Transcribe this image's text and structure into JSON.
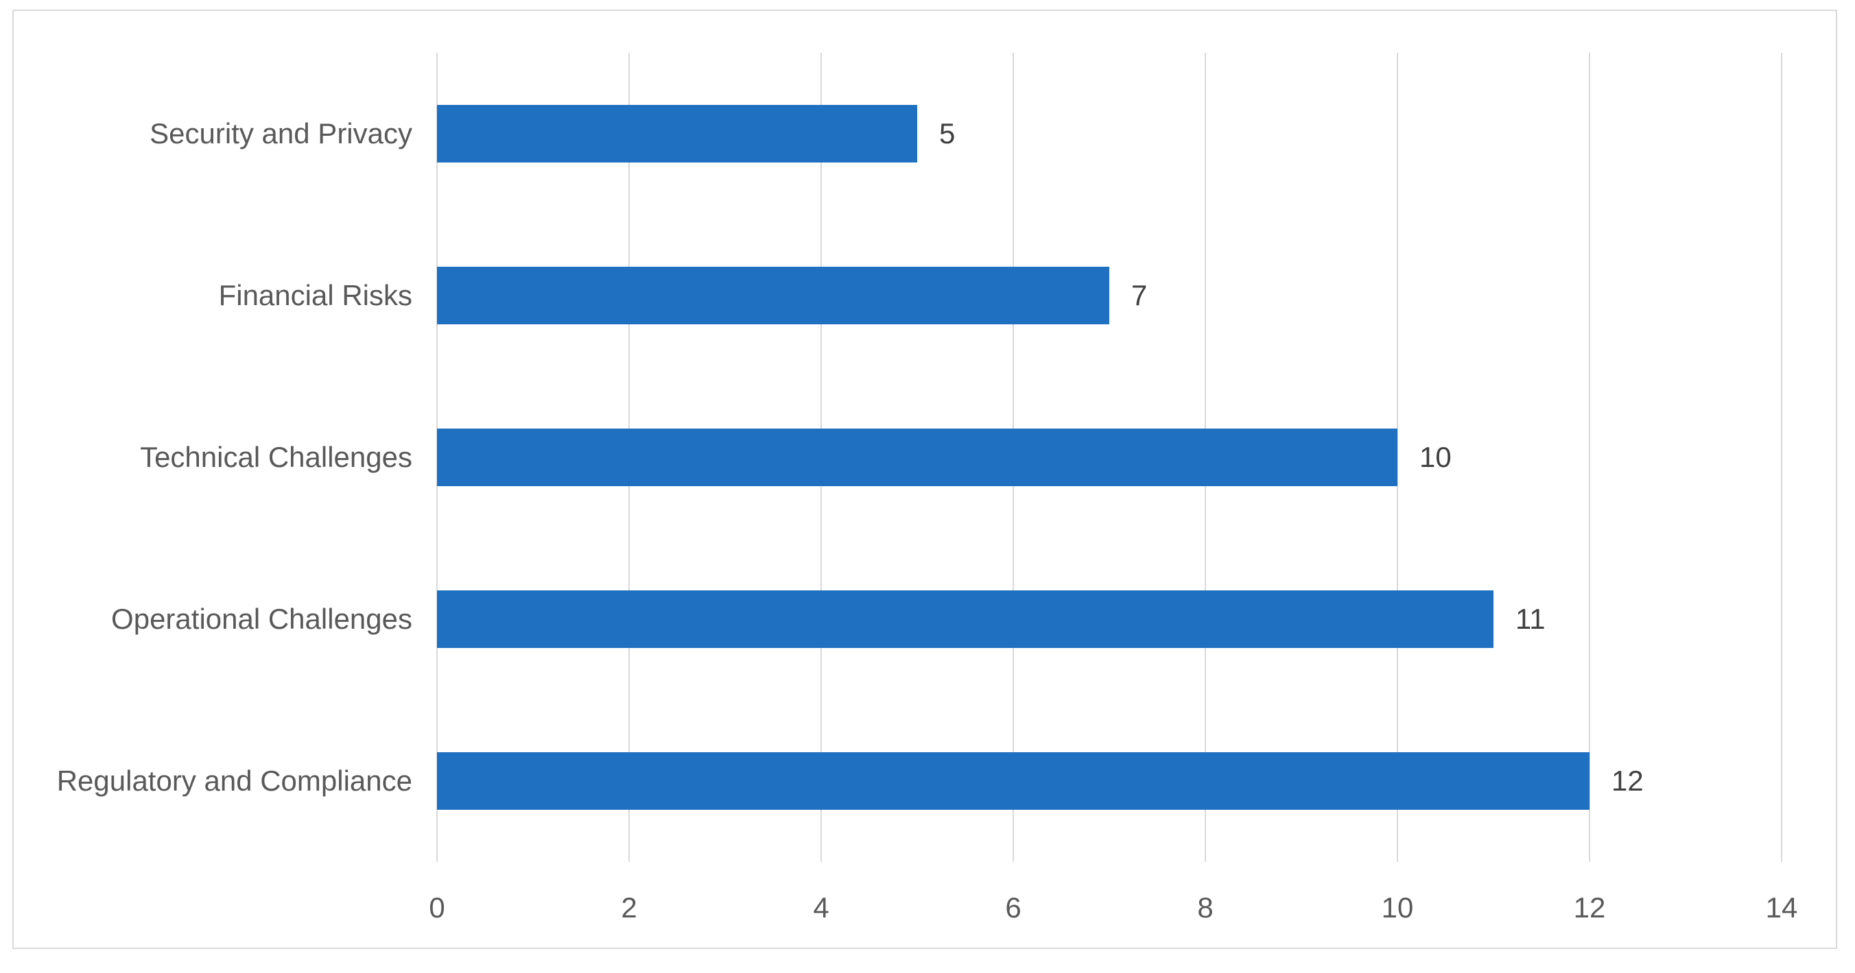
{
  "chart_data": {
    "type": "bar",
    "orientation": "horizontal",
    "title": "",
    "xlabel": "",
    "ylabel": "",
    "categories": [
      "Security and Privacy",
      "Financial Risks",
      "Technical Challenges",
      "Operational Challenges",
      "Regulatory and Compliance"
    ],
    "values": [
      5,
      7,
      10,
      11,
      12
    ],
    "data_labels": [
      "5",
      "7",
      "10",
      "11",
      "12"
    ],
    "xlim": [
      0,
      14
    ],
    "xticks": [
      0,
      2,
      4,
      6,
      8,
      10,
      12,
      14
    ],
    "grid": "vertical-gridlines-on",
    "legend": "none",
    "colors": {
      "bar": "#1F70C1",
      "gridline": "#D9D9D9",
      "frame_border": "#D9D9D9",
      "axis_tick_label": "#595959",
      "category_label": "#595959",
      "data_label": "#404040",
      "background": "#FFFFFF"
    }
  }
}
